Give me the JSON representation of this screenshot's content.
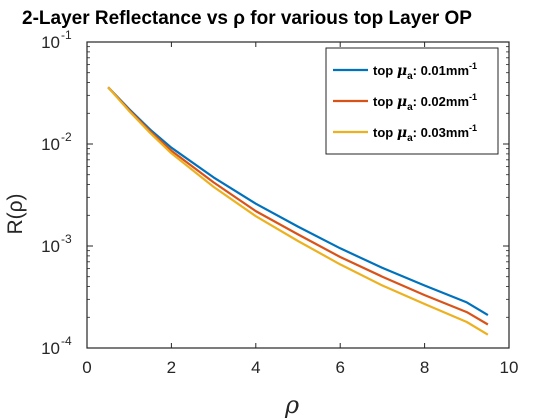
{
  "chart_data": {
    "type": "line",
    "title": "2-Layer Reflectance vs ρ for various top Layer OP",
    "xlabel": "ρ",
    "ylabel": "R(ρ)",
    "xlim": [
      0,
      10
    ],
    "ylim": [
      0.0001,
      0.1
    ],
    "yscale": "log",
    "xticks": [
      "0",
      "2",
      "4",
      "6",
      "8",
      "10"
    ],
    "yticks": [
      {
        "base": "10",
        "exp": "-1"
      },
      {
        "base": "10",
        "exp": "-2"
      },
      {
        "base": "10",
        "exp": "-3"
      },
      {
        "base": "10",
        "exp": "-4"
      }
    ],
    "grid": false,
    "legend_position": "top-right",
    "x": [
      0.5,
      1,
      1.5,
      2,
      3,
      4,
      5,
      6,
      7,
      8,
      9,
      9.5
    ],
    "series": [
      {
        "name": "top μa: 0.01mm-1",
        "label_prefix": "top ",
        "label_mu": "μ",
        "label_sub": "a",
        "label_mid": ": 0.01mm",
        "label_sup": "-1",
        "color": "#0072BD",
        "values": [
          0.036,
          0.022,
          0.0138,
          0.0092,
          0.0047,
          0.0026,
          0.00155,
          0.00095,
          0.00061,
          0.00041,
          0.00028,
          0.00021
        ]
      },
      {
        "name": "top μa: 0.02mm-1",
        "label_prefix": "top ",
        "label_mu": "μ",
        "label_sub": "a",
        "label_mid": ": 0.02mm",
        "label_sup": "-1",
        "color": "#D95319",
        "values": [
          0.036,
          0.0215,
          0.0133,
          0.0086,
          0.0042,
          0.0022,
          0.0013,
          0.00078,
          0.0005,
          0.00033,
          0.000225,
          0.00017
        ]
      },
      {
        "name": "top μa: 0.03mm-1",
        "label_prefix": "top ",
        "label_mu": "μ",
        "label_sub": "a",
        "label_mid": ": 0.03mm",
        "label_sup": "-1",
        "color": "#EDB120",
        "values": [
          0.036,
          0.021,
          0.0128,
          0.0081,
          0.0038,
          0.00196,
          0.00112,
          0.00066,
          0.00041,
          0.00027,
          0.00018,
          0.000135
        ]
      }
    ]
  }
}
